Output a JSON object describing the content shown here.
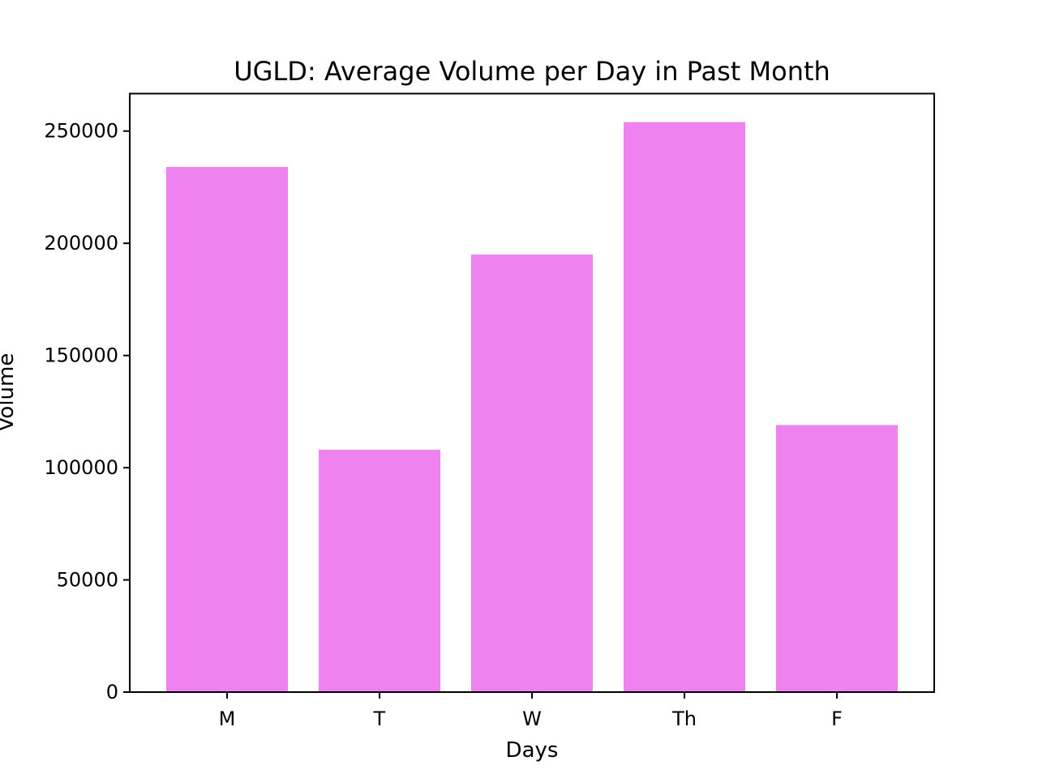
{
  "chart_data": {
    "type": "bar",
    "title": "UGLD: Average Volume per Day in Past Month",
    "xlabel": "Days",
    "ylabel": "Volume",
    "categories": [
      "M",
      "T",
      "W",
      "Th",
      "F"
    ],
    "values": [
      234000,
      108000,
      195000,
      254000,
      119000
    ],
    "ylim": [
      0,
      266700
    ],
    "yticks": [
      0,
      50000,
      100000,
      150000,
      200000,
      250000
    ],
    "bar_color": "#ee82ee",
    "grid": false,
    "legend": "none"
  }
}
